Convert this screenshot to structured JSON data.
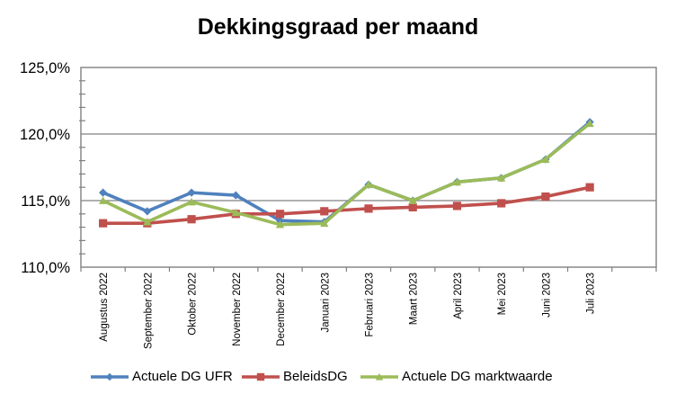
{
  "chart_data": {
    "type": "line",
    "title": "Dekkingsgraad per maand",
    "categories": [
      "Augustus 2022",
      "September 2022",
      "Oktober 2022",
      "November 2022",
      "December 2022",
      "Januari 2023",
      "Februari 2023",
      "Maart 2023",
      "April 2023",
      "Mei 2023",
      "Juni 2023",
      "Juli 2023"
    ],
    "series": [
      {
        "name": "Actuele DG UFR",
        "color": "#4F81BD",
        "marker": "diamond",
        "values": [
          115.6,
          114.2,
          115.6,
          115.4,
          113.5,
          113.4,
          116.2,
          115.0,
          116.4,
          116.7,
          118.1,
          120.9
        ]
      },
      {
        "name": "BeleidsDG",
        "color": "#C0504D",
        "marker": "square",
        "values": [
          113.3,
          113.3,
          113.6,
          114.0,
          114.0,
          114.2,
          114.4,
          114.5,
          114.6,
          114.8,
          115.3,
          116.0
        ]
      },
      {
        "name": "Actuele DG marktwaarde",
        "color": "#9BBB59",
        "marker": "triangle",
        "values": [
          115.0,
          113.4,
          114.9,
          114.1,
          113.2,
          113.3,
          116.2,
          115.0,
          116.4,
          116.7,
          118.1,
          120.8
        ]
      }
    ],
    "ylim": [
      110,
      125
    ],
    "ylabel": "",
    "xlabel": "",
    "y_axis": {
      "ticks": [
        {
          "value": 125,
          "label": "125,0%"
        },
        {
          "value": 120,
          "label": "120,0%"
        },
        {
          "value": 115,
          "label": "115,0%"
        },
        {
          "value": 110,
          "label": "110,0%"
        }
      ],
      "minor_tick_interval": 1
    },
    "grid": true,
    "legend_position": "bottom",
    "colors": {
      "axis": "#808080",
      "grid": "#808080",
      "text": "#000000",
      "background": "#FFFFFF"
    }
  }
}
